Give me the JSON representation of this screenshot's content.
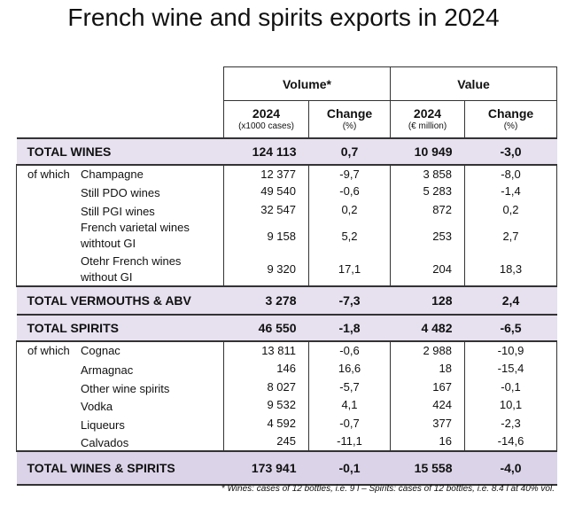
{
  "title": "French wine and spirits exports in 2024",
  "table": {
    "groups": [
      "Volume*",
      "Value"
    ],
    "columns": [
      {
        "label": "2024",
        "unit": "(x1000 cases)"
      },
      {
        "label": "Change",
        "unit": "(%)"
      },
      {
        "label": "2024",
        "unit": "(€ million)"
      },
      {
        "label": "Change",
        "unit": "(%)"
      }
    ],
    "rows": [
      {
        "total": true,
        "label": "TOTAL WINES",
        "cells": [
          "124 113",
          "0,7",
          "10 949",
          "-3,0"
        ]
      },
      {
        "prefix": "of which",
        "label": "Champagne",
        "cells": [
          "12 377",
          "-9,7",
          "3 858",
          "-8,0"
        ]
      },
      {
        "label": "Still PDO wines",
        "cells": [
          "49 540",
          "-0,6",
          "5 283",
          "-1,4"
        ]
      },
      {
        "label": "Still PGI wines",
        "cells": [
          "32 547",
          "0,2",
          "872",
          "0,2"
        ]
      },
      {
        "label": [
          "French varietal wines",
          "withtout GI"
        ],
        "cells": [
          "9 158",
          "5,2",
          "253",
          "2,7"
        ]
      },
      {
        "label": [
          "Otehr French wines",
          "without GI"
        ],
        "cells": [
          "9 320",
          "17,1",
          "204",
          "18,3"
        ]
      },
      {
        "total": true,
        "label": "TOTAL VERMOUTHS & ABV",
        "cells": [
          "3 278",
          "-7,3",
          "128",
          "2,4"
        ]
      },
      {
        "total": true,
        "label": "TOTAL SPIRITS",
        "cells": [
          "46 550",
          "-1,8",
          "4 482",
          "-6,5"
        ]
      },
      {
        "prefix": "of which",
        "label": "Cognac",
        "cells": [
          "13 811",
          "-0,6",
          "2 988",
          "-10,9"
        ]
      },
      {
        "label": "Armagnac",
        "cells": [
          "146",
          "16,6",
          "18",
          "-15,4"
        ]
      },
      {
        "label": "Other wine spirits",
        "cells": [
          "8 027",
          "-5,7",
          "167",
          "-0,1"
        ]
      },
      {
        "label": "Vodka",
        "cells": [
          "9 532",
          "4,1",
          "424",
          "10,1"
        ]
      },
      {
        "label": "Liqueurs",
        "cells": [
          "4 592",
          "-0,7",
          "377",
          "-2,3"
        ]
      },
      {
        "label": "Calvados",
        "cells": [
          "245",
          "-11,1",
          "16",
          "-14,6"
        ]
      },
      {
        "total": true,
        "grand": true,
        "label": "TOTAL WINES & SPIRITS",
        "cells": [
          "173 941",
          "-0,1",
          "15 558",
          "-4,0"
        ]
      }
    ]
  },
  "footnote": "* Wines: cases of 12 bottles, i.e. 9 l – Spirits: cases of 12 bottles, i.e. 8.4 l at 40% vol."
}
